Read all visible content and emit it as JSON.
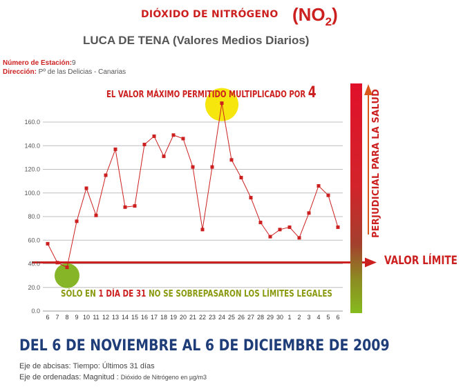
{
  "header": {
    "title": "DIÓXIDO DE NITRÓGENO",
    "formula_main": "(NO",
    "formula_sub": "2",
    "formula_close": ")",
    "subtitle": "LUCA DE TENA (Valores Medios Diarios)"
  },
  "station": {
    "number_label": "Número de Estación:",
    "number_value": "9",
    "address_label": "Dirección:",
    "address_value": " Pº de las Delicias - Canarias"
  },
  "annotations": {
    "max_prefix": "EL VALOR MÁXIMO PERMITIDO MULTIPLICADO POR ",
    "max_factor": "4",
    "min_part1": "SÓLO EN ",
    "min_part2": "1 DÍA DE 31",
    "min_part3": " NO SE SOBREPASARON LOS LÍMITES LEGALES",
    "limit_label": "VALOR LÍMITE",
    "health_label": "PERJUDICIAL PARA LA SALUD"
  },
  "footer": {
    "period": "DEL 6 DE NOVIEMBRE AL 6 DE DICIEMBRE DE 2009",
    "x_axis_note": "Eje de abcisas: Tiempo: Últimos 31 días",
    "y_axis_note": "Eje de ordenadas: Magnitud : ",
    "y_axis_note_small": "Dióxido de Nitrógeno en µg/m3"
  },
  "colors": {
    "series": "#cc1f1f",
    "limit_line": "#cc1f1f",
    "max_highlight": "#f5e500",
    "min_highlight": "#7fb21c",
    "period_text": "#1f3d78"
  },
  "chart_data": {
    "type": "line",
    "x": [
      "6",
      "7",
      "8",
      "9",
      "10",
      "11",
      "12",
      "13",
      "14",
      "15",
      "16",
      "17",
      "18",
      "19",
      "20",
      "21",
      "22",
      "23",
      "24",
      "25",
      "26",
      "27",
      "28",
      "29",
      "30",
      "1",
      "2",
      "3",
      "4",
      "5",
      "6"
    ],
    "series": [
      {
        "values": [
          57,
          41,
          37,
          76,
          104,
          81,
          115,
          137,
          88,
          89,
          141,
          148,
          131,
          149,
          146,
          122,
          69,
          122,
          176,
          128,
          113,
          96,
          75,
          63,
          69,
          71,
          62,
          83,
          106,
          98,
          71
        ]
      }
    ],
    "ylim": [
      0,
      160
    ],
    "yticks": [
      "0.0",
      "20.0",
      "40.0",
      "60.0",
      "80.0",
      "100.0",
      "120.0",
      "140.0",
      "160.0"
    ],
    "limit_value": 40,
    "grid": true,
    "xlabel": "",
    "ylabel": ""
  }
}
